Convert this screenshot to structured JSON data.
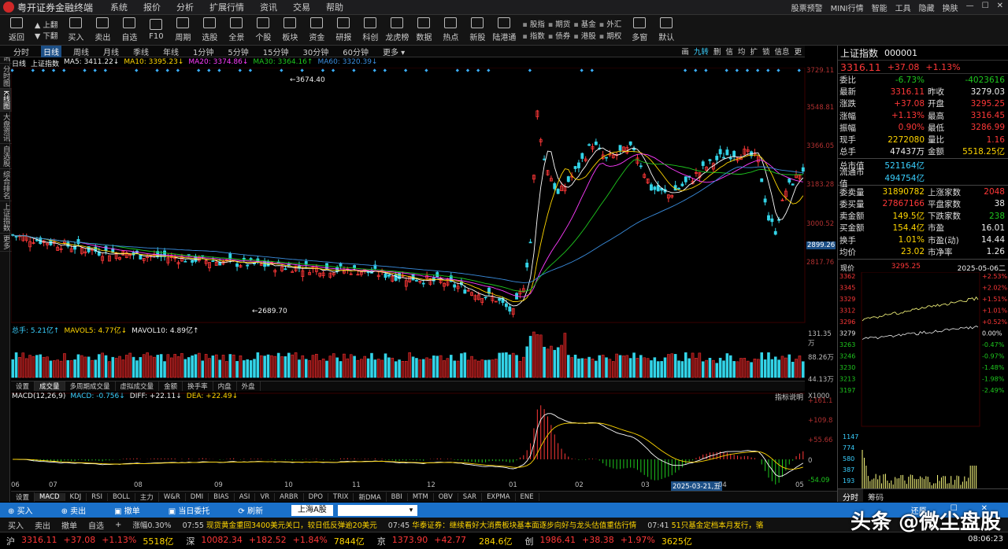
{
  "window": {
    "title": "粤开证券金融终端",
    "menus": [
      "系统",
      "报价",
      "分析",
      "扩展行情",
      "资讯",
      "交易",
      "帮助"
    ],
    "right_items": [
      "股票预警",
      "MINI行情",
      "智能",
      "工具",
      "隐藏",
      "换肤"
    ]
  },
  "toolbar": {
    "buttons": [
      "返回",
      "买入",
      "卖出",
      "自选",
      "F10",
      "周期",
      "选股",
      "全景",
      "个股",
      "板块",
      "资金",
      "研报",
      "科创",
      "龙虎榜",
      "数据",
      "热点",
      "新股",
      "陆港通",
      "多窗",
      "默认"
    ],
    "updown": [
      "上翻",
      "下翻"
    ],
    "grid_items": [
      "股指",
      "期货",
      "基金",
      "外汇",
      "指数",
      "债券",
      "港股",
      "期权"
    ]
  },
  "period_tabs": {
    "items": [
      "分时",
      "日线",
      "周线",
      "月线",
      "季线",
      "年线",
      "1分钟",
      "5分钟",
      "15分钟",
      "30分钟",
      "60分钟",
      "更多 ▾"
    ],
    "active": "日线",
    "right_tools": [
      "画",
      "九转",
      "删",
      "信",
      "均",
      "扩",
      "锁",
      "信息",
      "更"
    ]
  },
  "left_strip": [
    "资讯",
    "分时图",
    "K线图",
    "大盘资讯",
    "自选股",
    "综合排名",
    "上证指数",
    "更多"
  ],
  "main_chart": {
    "legend": {
      "label": "日线",
      "name": "上证指数",
      "ma5": "MA5: 3411.22↓",
      "ma10": "MA10: 3395.23↓",
      "ma20": "MA20: 3374.86↓",
      "ma30": "MA30: 3364.16↑",
      "ma60": "MA60: 3320.39↓"
    },
    "price_labels": [
      "3729.11",
      "3548.81",
      "3366.05",
      "3183.28",
      "3000.52",
      "2899.26",
      "2817.76"
    ],
    "high_annotation": "3674.40",
    "low_annotation": "2689.70",
    "colors": {
      "up": "#ff3838",
      "down": "#33d4e8",
      "ma5": "#ffffff",
      "ma10": "#ffd600",
      "ma20": "#ff3cff",
      "ma30": "#1ec81e",
      "ma60": "#3a8dde"
    }
  },
  "volume_chart": {
    "legend": {
      "total": "总手: 5.21亿↑",
      "mavol5": "MAVOL5: 4.77亿↓",
      "mavol10": "MAVOL10: 4.89亿↑"
    },
    "labels": [
      "131.35万",
      "88.26万",
      "44.13万",
      "X1000"
    ],
    "tabs": [
      "设置",
      "成交量",
      "多周期成交量",
      "虚拟成交量",
      "金额",
      "换手率",
      "内盘",
      "外盘"
    ],
    "active_tab": "成交量"
  },
  "macd_chart": {
    "legend": {
      "name": "MACD(12,26,9)",
      "macd": "MACD: -0.756↓",
      "diff": "DIFF: +22.11↓",
      "dea": "DEA: +22.49↓"
    },
    "help": "指标说明",
    "labels": [
      "+161.1",
      "+109.8",
      "+55.66",
      "0",
      "-54.09"
    ],
    "months": [
      "06",
      "07",
      "08",
      "09",
      "10",
      "11",
      "12",
      "01",
      "02",
      "03",
      "04",
      "05"
    ],
    "date_tag": "2025-03-21,五",
    "indicator_tabs": [
      "设置",
      "MACD",
      "KDJ",
      "RSI",
      "BOLL",
      "主力",
      "W&R",
      "DMI",
      "BIAS",
      "ASI",
      "VR",
      "ARBR",
      "DPO",
      "TRIX",
      "新DMA",
      "BBI",
      "MTM",
      "OBV",
      "SAR",
      "EXPMA",
      "ENE"
    ],
    "active_indicator": "MACD"
  },
  "quote_panel": {
    "name": "上证指数",
    "code": "000001",
    "price": "3316.11",
    "change": "+37.08",
    "change_pct": "+1.13%",
    "rows": [
      [
        "委比",
        "-6.73%",
        "",
        "-4023616"
      ],
      [
        "最新",
        "3316.11",
        "昨收",
        "3279.03"
      ],
      [
        "涨跌",
        "+37.08",
        "开盘",
        "3295.25"
      ],
      [
        "涨幅",
        "+1.13%",
        "最高",
        "3316.45"
      ],
      [
        "振幅",
        "0.90%",
        "最低",
        "3286.99"
      ],
      [
        "现手",
        "2272080",
        "量比",
        "1.16"
      ],
      [
        "总手",
        "47437万",
        "金额",
        "5518.25亿"
      ]
    ],
    "caps": [
      [
        "总市值",
        "521164亿"
      ],
      [
        "流通市值",
        "494754亿"
      ]
    ],
    "stats": [
      [
        "委卖量",
        "31890782",
        "上涨家数",
        "2048"
      ],
      [
        "委买量",
        "27867166",
        "平盘家数",
        "38"
      ],
      [
        "卖金额",
        "149.5亿",
        "下跌家数",
        "238"
      ],
      [
        "买金额",
        "154.4亿",
        "市盈",
        "16.01"
      ],
      [
        "换手",
        "1.01%",
        "市盈(动)",
        "14.44"
      ],
      [
        "均价",
        "23.02",
        "市净率",
        "1.26"
      ]
    ],
    "mini": {
      "header_left": "现价",
      "header_price": "3295.25",
      "header_date": "2025-05-06二",
      "left_labels": [
        "3362",
        "3345",
        "3329",
        "3312",
        "3296",
        "3279",
        "3263",
        "3246",
        "3230",
        "3213",
        "3197"
      ],
      "right_labels": [
        "+2.53%",
        "+2.02%",
        "+1.51%",
        "+1.01%",
        "+0.52%",
        "0.00%",
        "-0.47%",
        "-0.97%",
        "-1.48%",
        "-1.98%",
        "-2.49%"
      ],
      "vol_labels": [
        "1147",
        "774",
        "580",
        "387",
        "193"
      ]
    },
    "tabs": [
      "分时",
      "筹码"
    ],
    "active_tab": "分时"
  },
  "trade_bar": {
    "buttons": [
      "买入",
      "卖出",
      "撤单",
      "当日委托",
      "刷新"
    ],
    "market": "上海A股",
    "account": "A260277521",
    "right": [
      "还原",
      "☐",
      "✕"
    ]
  },
  "news_bar": {
    "buttons": [
      "买入",
      "卖出",
      "撤单",
      "自选",
      "+"
    ],
    "news": [
      {
        "time": "涨幅0.30%",
        "text": ""
      },
      {
        "time": "07:55",
        "text": "现货黄金重回3400美元关口，较日低反弹逾20美元"
      },
      {
        "time": "07:45",
        "text": "华泰证券：继续看好大消费板块基本面逐步向好与龙头估值重估行情"
      },
      {
        "time": "07:41",
        "text": "51只基金定档本月发行，骆"
      }
    ]
  },
  "index_bar": [
    {
      "name": "沪",
      "price": "3316.11",
      "chg": "+37.08",
      "pct": "+1.13%",
      "amt": "5518亿"
    },
    {
      "name": "深",
      "price": "10082.34",
      "chg": "+182.52",
      "pct": "+1.84%",
      "amt": "7844亿"
    },
    {
      "name": "京",
      "price": "1373.90",
      "chg": "+42.77",
      "pct": "",
      "amt": "284.6亿"
    },
    {
      "name": "创",
      "price": "1986.41",
      "chg": "+38.38",
      "pct": "+1.97%",
      "amt": "3625亿"
    }
  ],
  "clock": "08:06:23",
  "watermark": "头条 @微尘盘股"
}
